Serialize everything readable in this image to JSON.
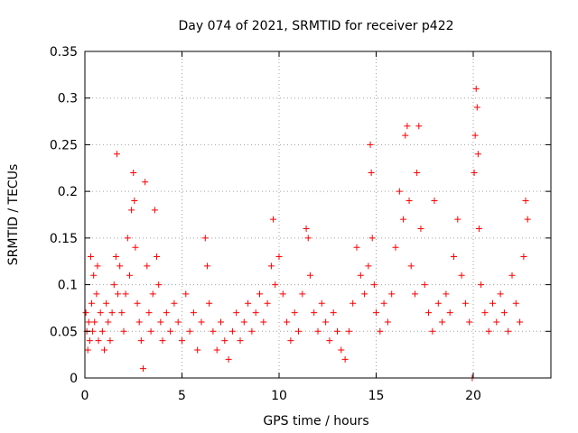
{
  "chart_data": {
    "type": "scatter",
    "title": "Day 074 of 2021, SRMTID for receiver p422",
    "xlabel": "GPS time / hours",
    "ylabel": "SRMTID / TECUs",
    "xlim": [
      0,
      24
    ],
    "ylim": [
      0,
      0.35
    ],
    "xticks": [
      0,
      5,
      10,
      15,
      20
    ],
    "xtick_labels": [
      "0",
      "5",
      "10",
      "15",
      "20"
    ],
    "yticks": [
      0,
      0.05,
      0.1,
      0.15,
      0.2,
      0.25,
      0.3,
      0.35
    ],
    "ytick_labels": [
      "0",
      "0.05",
      "0.1",
      "0.15",
      "0.2",
      "0.25",
      "0.3",
      "0.35"
    ],
    "grid": true,
    "marker": "+",
    "color": "#ff0000",
    "series": [
      {
        "name": "SRMTID",
        "points": [
          [
            0.05,
            0.07
          ],
          [
            0.1,
            0.05
          ],
          [
            0.15,
            0.03
          ],
          [
            0.2,
            0.06
          ],
          [
            0.25,
            0.04
          ],
          [
            0.3,
            0.13
          ],
          [
            0.35,
            0.08
          ],
          [
            0.4,
            0.05
          ],
          [
            0.45,
            0.11
          ],
          [
            0.5,
            0.06
          ],
          [
            0.6,
            0.09
          ],
          [
            0.65,
            0.12
          ],
          [
            0.7,
            0.04
          ],
          [
            0.8,
            0.07
          ],
          [
            0.9,
            0.05
          ],
          [
            1.0,
            0.03
          ],
          [
            1.1,
            0.08
          ],
          [
            1.2,
            0.06
          ],
          [
            1.3,
            0.04
          ],
          [
            1.4,
            0.07
          ],
          [
            1.5,
            0.1
          ],
          [
            1.6,
            0.13
          ],
          [
            1.65,
            0.24
          ],
          [
            1.7,
            0.09
          ],
          [
            1.8,
            0.12
          ],
          [
            1.9,
            0.07
          ],
          [
            2.0,
            0.05
          ],
          [
            2.1,
            0.09
          ],
          [
            2.2,
            0.15
          ],
          [
            2.3,
            0.11
          ],
          [
            2.4,
            0.18
          ],
          [
            2.5,
            0.22
          ],
          [
            2.55,
            0.19
          ],
          [
            2.6,
            0.14
          ],
          [
            2.7,
            0.08
          ],
          [
            2.8,
            0.06
          ],
          [
            2.9,
            0.04
          ],
          [
            3.0,
            0.01
          ],
          [
            3.1,
            0.21
          ],
          [
            3.2,
            0.12
          ],
          [
            3.3,
            0.07
          ],
          [
            3.4,
            0.05
          ],
          [
            3.5,
            0.09
          ],
          [
            3.6,
            0.18
          ],
          [
            3.7,
            0.13
          ],
          [
            3.8,
            0.1
          ],
          [
            3.9,
            0.06
          ],
          [
            4.0,
            0.04
          ],
          [
            4.2,
            0.07
          ],
          [
            4.4,
            0.05
          ],
          [
            4.6,
            0.08
          ],
          [
            4.8,
            0.06
          ],
          [
            5.0,
            0.04
          ],
          [
            5.2,
            0.09
          ],
          [
            5.4,
            0.05
          ],
          [
            5.6,
            0.07
          ],
          [
            5.8,
            0.03
          ],
          [
            6.0,
            0.06
          ],
          [
            6.2,
            0.15
          ],
          [
            6.3,
            0.12
          ],
          [
            6.4,
            0.08
          ],
          [
            6.6,
            0.05
          ],
          [
            6.8,
            0.03
          ],
          [
            7.0,
            0.06
          ],
          [
            7.2,
            0.04
          ],
          [
            7.4,
            0.02
          ],
          [
            7.6,
            0.05
          ],
          [
            7.8,
            0.07
          ],
          [
            8.0,
            0.04
          ],
          [
            8.2,
            0.06
          ],
          [
            8.4,
            0.08
          ],
          [
            8.6,
            0.05
          ],
          [
            8.8,
            0.07
          ],
          [
            9.0,
            0.09
          ],
          [
            9.2,
            0.06
          ],
          [
            9.4,
            0.08
          ],
          [
            9.6,
            0.12
          ],
          [
            9.7,
            0.17
          ],
          [
            9.8,
            0.1
          ],
          [
            10.0,
            0.13
          ],
          [
            10.2,
            0.09
          ],
          [
            10.4,
            0.06
          ],
          [
            10.6,
            0.04
          ],
          [
            10.8,
            0.07
          ],
          [
            11.0,
            0.05
          ],
          [
            11.2,
            0.09
          ],
          [
            11.4,
            0.16
          ],
          [
            11.5,
            0.15
          ],
          [
            11.6,
            0.11
          ],
          [
            11.8,
            0.07
          ],
          [
            12.0,
            0.05
          ],
          [
            12.2,
            0.08
          ],
          [
            12.4,
            0.06
          ],
          [
            12.6,
            0.04
          ],
          [
            12.8,
            0.07
          ],
          [
            13.0,
            0.05
          ],
          [
            13.2,
            0.03
          ],
          [
            13.4,
            0.02
          ],
          [
            13.6,
            0.05
          ],
          [
            13.8,
            0.08
          ],
          [
            14.0,
            0.14
          ],
          [
            14.2,
            0.11
          ],
          [
            14.4,
            0.09
          ],
          [
            14.6,
            0.12
          ],
          [
            14.7,
            0.25
          ],
          [
            14.75,
            0.22
          ],
          [
            14.8,
            0.15
          ],
          [
            14.9,
            0.1
          ],
          [
            15.0,
            0.07
          ],
          [
            15.2,
            0.05
          ],
          [
            15.4,
            0.08
          ],
          [
            15.6,
            0.06
          ],
          [
            15.8,
            0.09
          ],
          [
            16.0,
            0.14
          ],
          [
            16.2,
            0.2
          ],
          [
            16.4,
            0.17
          ],
          [
            16.5,
            0.26
          ],
          [
            16.6,
            0.27
          ],
          [
            16.7,
            0.19
          ],
          [
            16.8,
            0.12
          ],
          [
            17.0,
            0.09
          ],
          [
            17.1,
            0.22
          ],
          [
            17.2,
            0.27
          ],
          [
            17.3,
            0.16
          ],
          [
            17.5,
            0.1
          ],
          [
            17.7,
            0.07
          ],
          [
            17.9,
            0.05
          ],
          [
            18.0,
            0.19
          ],
          [
            18.2,
            0.08
          ],
          [
            18.4,
            0.06
          ],
          [
            18.6,
            0.09
          ],
          [
            18.8,
            0.07
          ],
          [
            19.0,
            0.13
          ],
          [
            19.2,
            0.17
          ],
          [
            19.4,
            0.11
          ],
          [
            19.6,
            0.08
          ],
          [
            19.8,
            0.06
          ],
          [
            19.95,
            0.0
          ],
          [
            20.05,
            0.22
          ],
          [
            20.1,
            0.26
          ],
          [
            20.15,
            0.31
          ],
          [
            20.2,
            0.29
          ],
          [
            20.25,
            0.24
          ],
          [
            20.3,
            0.16
          ],
          [
            20.4,
            0.1
          ],
          [
            20.6,
            0.07
          ],
          [
            20.8,
            0.05
          ],
          [
            21.0,
            0.08
          ],
          [
            21.2,
            0.06
          ],
          [
            21.4,
            0.09
          ],
          [
            21.6,
            0.07
          ],
          [
            21.8,
            0.05
          ],
          [
            22.0,
            0.11
          ],
          [
            22.2,
            0.08
          ],
          [
            22.4,
            0.06
          ],
          [
            22.6,
            0.13
          ],
          [
            22.7,
            0.19
          ],
          [
            22.8,
            0.17
          ]
        ]
      }
    ]
  }
}
